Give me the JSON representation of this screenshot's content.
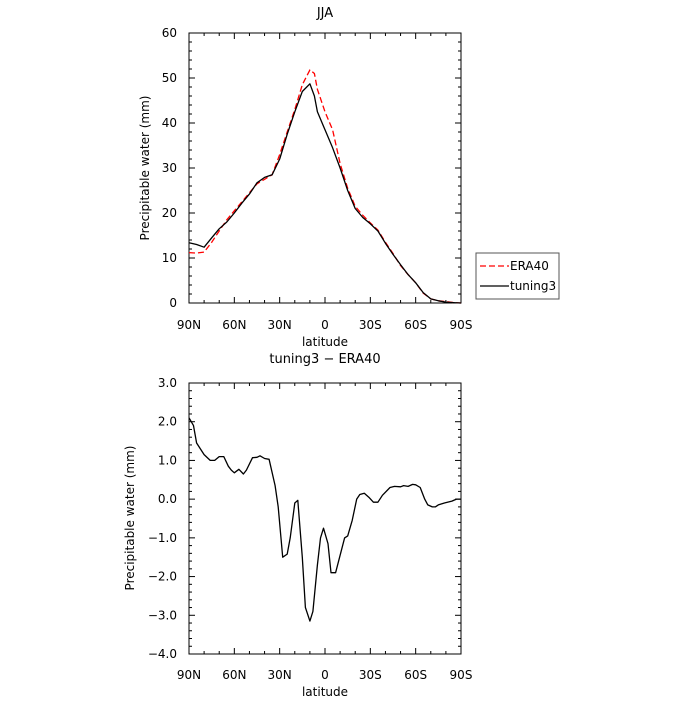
{
  "chart_data": [
    {
      "type": "line",
      "title": "JJA",
      "xlabel": "latitude",
      "ylabel": "Precipitable water (mm)",
      "xlim": [
        90,
        -90
      ],
      "ylim": [
        0,
        60
      ],
      "x_ticks": [
        90,
        60,
        30,
        0,
        -30,
        -60,
        -90
      ],
      "x_tick_labels": [
        "90N",
        "60N",
        "30N",
        "0",
        "30S",
        "60S",
        "90S"
      ],
      "y_ticks": [
        0,
        10,
        20,
        30,
        40,
        50,
        60
      ],
      "y_tick_labels": [
        "0",
        "10",
        "20",
        "30",
        "40",
        "50",
        "60"
      ],
      "legend_placement": "right",
      "series": [
        {
          "name": "ERA40",
          "color": "#ff0000",
          "dash": "dashed",
          "x": [
            90,
            85,
            80,
            75,
            70,
            65,
            60,
            55,
            50,
            45,
            40,
            35,
            30,
            25,
            20,
            15,
            10,
            7,
            5,
            0,
            -5,
            -10,
            -15,
            -20,
            -25,
            -30,
            -35,
            -40,
            -45,
            -50,
            -55,
            -60,
            -65,
            -70,
            -75,
            -80,
            -85,
            -90
          ],
          "y": [
            11.2,
            11.1,
            11.3,
            13.5,
            16.0,
            18.5,
            20.5,
            22.5,
            24.5,
            26.5,
            27.5,
            28.5,
            33.0,
            38.0,
            43.0,
            48.5,
            51.8,
            51.0,
            47.5,
            42.5,
            38.5,
            31.0,
            25.5,
            21.5,
            19.5,
            17.8,
            16.2,
            13.5,
            11.0,
            8.3,
            6.3,
            4.5,
            2.2,
            0.9,
            0.5,
            0.3,
            0.1,
            0.0
          ]
        },
        {
          "name": "tuning3",
          "color": "#000000",
          "dash": "solid",
          "x": [
            90,
            85,
            80,
            75,
            70,
            65,
            60,
            55,
            50,
            45,
            40,
            35,
            30,
            25,
            20,
            15,
            10,
            7,
            5,
            0,
            -5,
            -10,
            -15,
            -20,
            -25,
            -30,
            -35,
            -40,
            -45,
            -50,
            -55,
            -60,
            -65,
            -70,
            -75,
            -80,
            -85,
            -90
          ],
          "y": [
            13.4,
            13.0,
            12.4,
            14.5,
            16.5,
            18.0,
            20.0,
            22.2,
            24.2,
            26.7,
            27.9,
            28.5,
            32.0,
            37.5,
            42.5,
            47.0,
            48.7,
            46.0,
            42.5,
            38.5,
            34.5,
            30.0,
            25.0,
            21.0,
            19.0,
            17.6,
            16.0,
            13.3,
            10.8,
            8.5,
            6.3,
            4.5,
            2.3,
            0.9,
            0.5,
            0.2,
            0.1,
            0.0
          ]
        }
      ]
    },
    {
      "type": "line",
      "title": "tuning3 − ERA40",
      "xlabel": "latitude",
      "ylabel": "Precipitable water (mm)",
      "xlim": [
        90,
        -90
      ],
      "ylim": [
        -4,
        3
      ],
      "x_ticks": [
        90,
        60,
        30,
        0,
        -30,
        -60,
        -90
      ],
      "x_tick_labels": [
        "90N",
        "60N",
        "30N",
        "0",
        "30S",
        "60S",
        "90S"
      ],
      "y_ticks": [
        -4,
        -3,
        -2,
        -1,
        0,
        1,
        2,
        3
      ],
      "y_tick_labels": [
        "−4.0",
        "−3.0",
        "−2.0",
        "−1.0",
        "0.0",
        "1.0",
        "2.0",
        "3.0"
      ],
      "series": [
        {
          "color": "#000000",
          "dash": "solid",
          "x": [
            90,
            87,
            85,
            80,
            76,
            73,
            70,
            67,
            64,
            62,
            60,
            57,
            54,
            52,
            48,
            45,
            43,
            40,
            37,
            33,
            31,
            28,
            25,
            23,
            20,
            18,
            15,
            13,
            10,
            8,
            5,
            3,
            1,
            -2,
            -4,
            -7,
            -10,
            -13,
            -15,
            -18,
            -21,
            -23,
            -26,
            -29,
            -32,
            -35,
            -38,
            -43,
            -46,
            -50,
            -52,
            -55,
            -58,
            -60,
            -63,
            -66,
            -68,
            -71,
            -73,
            -75,
            -79,
            -84,
            -87,
            -90
          ],
          "y": [
            2.1,
            1.9,
            1.45,
            1.15,
            1.0,
            1.0,
            1.1,
            1.1,
            0.85,
            0.75,
            0.68,
            0.77,
            0.65,
            0.75,
            1.07,
            1.08,
            1.12,
            1.05,
            1.03,
            0.35,
            -0.2,
            -1.5,
            -1.42,
            -1.0,
            -0.1,
            -0.03,
            -1.5,
            -2.8,
            -3.15,
            -2.9,
            -1.7,
            -1.0,
            -0.75,
            -1.15,
            -1.9,
            -1.9,
            -1.45,
            -1.0,
            -0.95,
            -0.55,
            0.0,
            0.12,
            0.15,
            0.05,
            -0.08,
            -0.08,
            0.1,
            0.3,
            0.33,
            0.32,
            0.35,
            0.33,
            0.38,
            0.37,
            0.3,
            0.0,
            -0.15,
            -0.2,
            -0.2,
            -0.15,
            -0.1,
            -0.05,
            0.0,
            0.0
          ]
        }
      ]
    }
  ]
}
